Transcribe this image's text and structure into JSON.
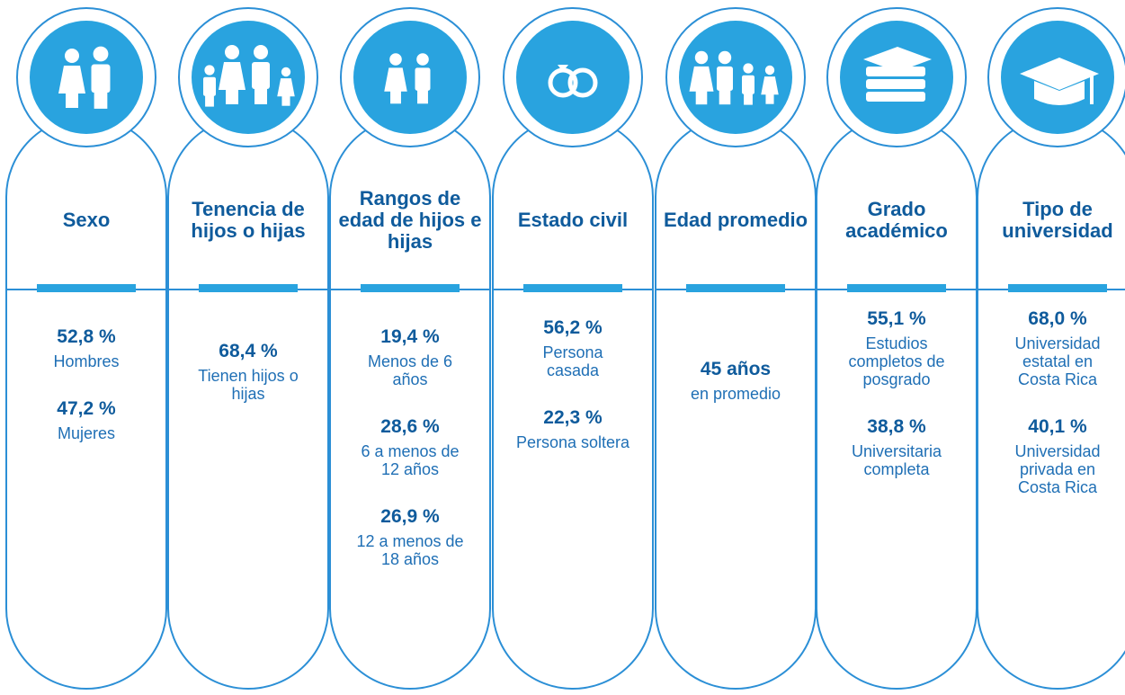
{
  "columns": [
    {
      "title": "Sexo",
      "items": [
        {
          "value": "52,8 %",
          "label": "Hombres"
        },
        {
          "value": "47,2 %",
          "label": "Mujeres"
        }
      ]
    },
    {
      "title": "Tenencia de hijos o hijas",
      "items": [
        {
          "value": "68,4 %",
          "label": "Tienen hijos o hijas"
        }
      ]
    },
    {
      "title": "Rangos de edad de hijos e hijas",
      "items": [
        {
          "value": "19,4 %",
          "label": "Menos de 6 años"
        },
        {
          "value": "28,6 %",
          "label": "6 a menos de 12 años"
        },
        {
          "value": "26,9 %",
          "label": "12 a menos de 18 años"
        }
      ]
    },
    {
      "title": "Estado civil",
      "items": [
        {
          "value": "56,2 %",
          "label": "Persona casada"
        },
        {
          "value": "22,3 %",
          "label": "Persona soltera"
        }
      ]
    },
    {
      "title": "Edad promedio",
      "items": [
        {
          "value": "45 años",
          "label": "en promedio"
        }
      ]
    },
    {
      "title": "Grado académico",
      "items": [
        {
          "value": "55,1 %",
          "label": "Estudios completos de posgrado"
        },
        {
          "value": "38,8 %",
          "label": "Universitaria completa"
        }
      ]
    },
    {
      "title": "Tipo de universidad",
      "items": [
        {
          "value": "68,0 %",
          "label": "Universidad estatal en Costa Rica"
        },
        {
          "value": "40,1 %",
          "label": "Universidad privada en Costa Rica"
        }
      ]
    }
  ]
}
